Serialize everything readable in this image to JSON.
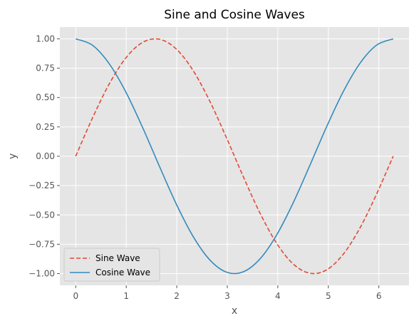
{
  "chart_data": {
    "type": "line",
    "title": "Sine and Cosine Waves",
    "xlabel": "x",
    "ylabel": "y",
    "xlim": [
      -0.314,
      6.597
    ],
    "ylim": [
      -1.1,
      1.1
    ],
    "xticks": [
      0,
      1,
      2,
      3,
      4,
      5,
      6
    ],
    "xtick_labels": [
      "0",
      "1",
      "2",
      "3",
      "4",
      "5",
      "6"
    ],
    "yticks": [
      1.0,
      0.75,
      0.5,
      0.25,
      0.0,
      -0.25,
      -0.5,
      -0.75,
      -1.0
    ],
    "ytick_labels": [
      "1.00",
      "0.75",
      "0.50",
      "0.25",
      "0.00",
      "−0.25",
      "−0.50",
      "−0.75",
      "−1.00"
    ],
    "grid": true,
    "legend_position": "lower-left",
    "x": [
      0,
      0.3307,
      0.6614,
      0.9921,
      1.3228,
      1.6535,
      1.9842,
      2.3149,
      2.6456,
      2.9762,
      3.3069,
      3.6376,
      3.9683,
      4.299,
      4.6297,
      4.9604,
      5.2911,
      5.6218,
      5.9525,
      6.2832
    ],
    "series": [
      {
        "name": "Sine Wave",
        "color": "#e24a33",
        "style": "dashed",
        "values": [
          0,
          0.3247,
          0.6142,
          0.8372,
          0.9694,
          0.9966,
          0.9158,
          0.7357,
          0.4759,
          0.1646,
          -0.1646,
          -0.4759,
          -0.7357,
          -0.9158,
          -0.9966,
          -0.9694,
          -0.8372,
          -0.6142,
          -0.3247,
          0
        ]
      },
      {
        "name": "Cosine Wave",
        "color": "#348abd",
        "style": "solid",
        "values": [
          1,
          0.9458,
          0.7891,
          0.5469,
          0.2455,
          -0.0826,
          -0.4017,
          -0.6773,
          -0.8795,
          -0.9864,
          -0.9864,
          -0.8795,
          -0.6773,
          -0.4017,
          -0.0826,
          0.2455,
          0.5469,
          0.7891,
          0.9458,
          1
        ]
      }
    ]
  }
}
